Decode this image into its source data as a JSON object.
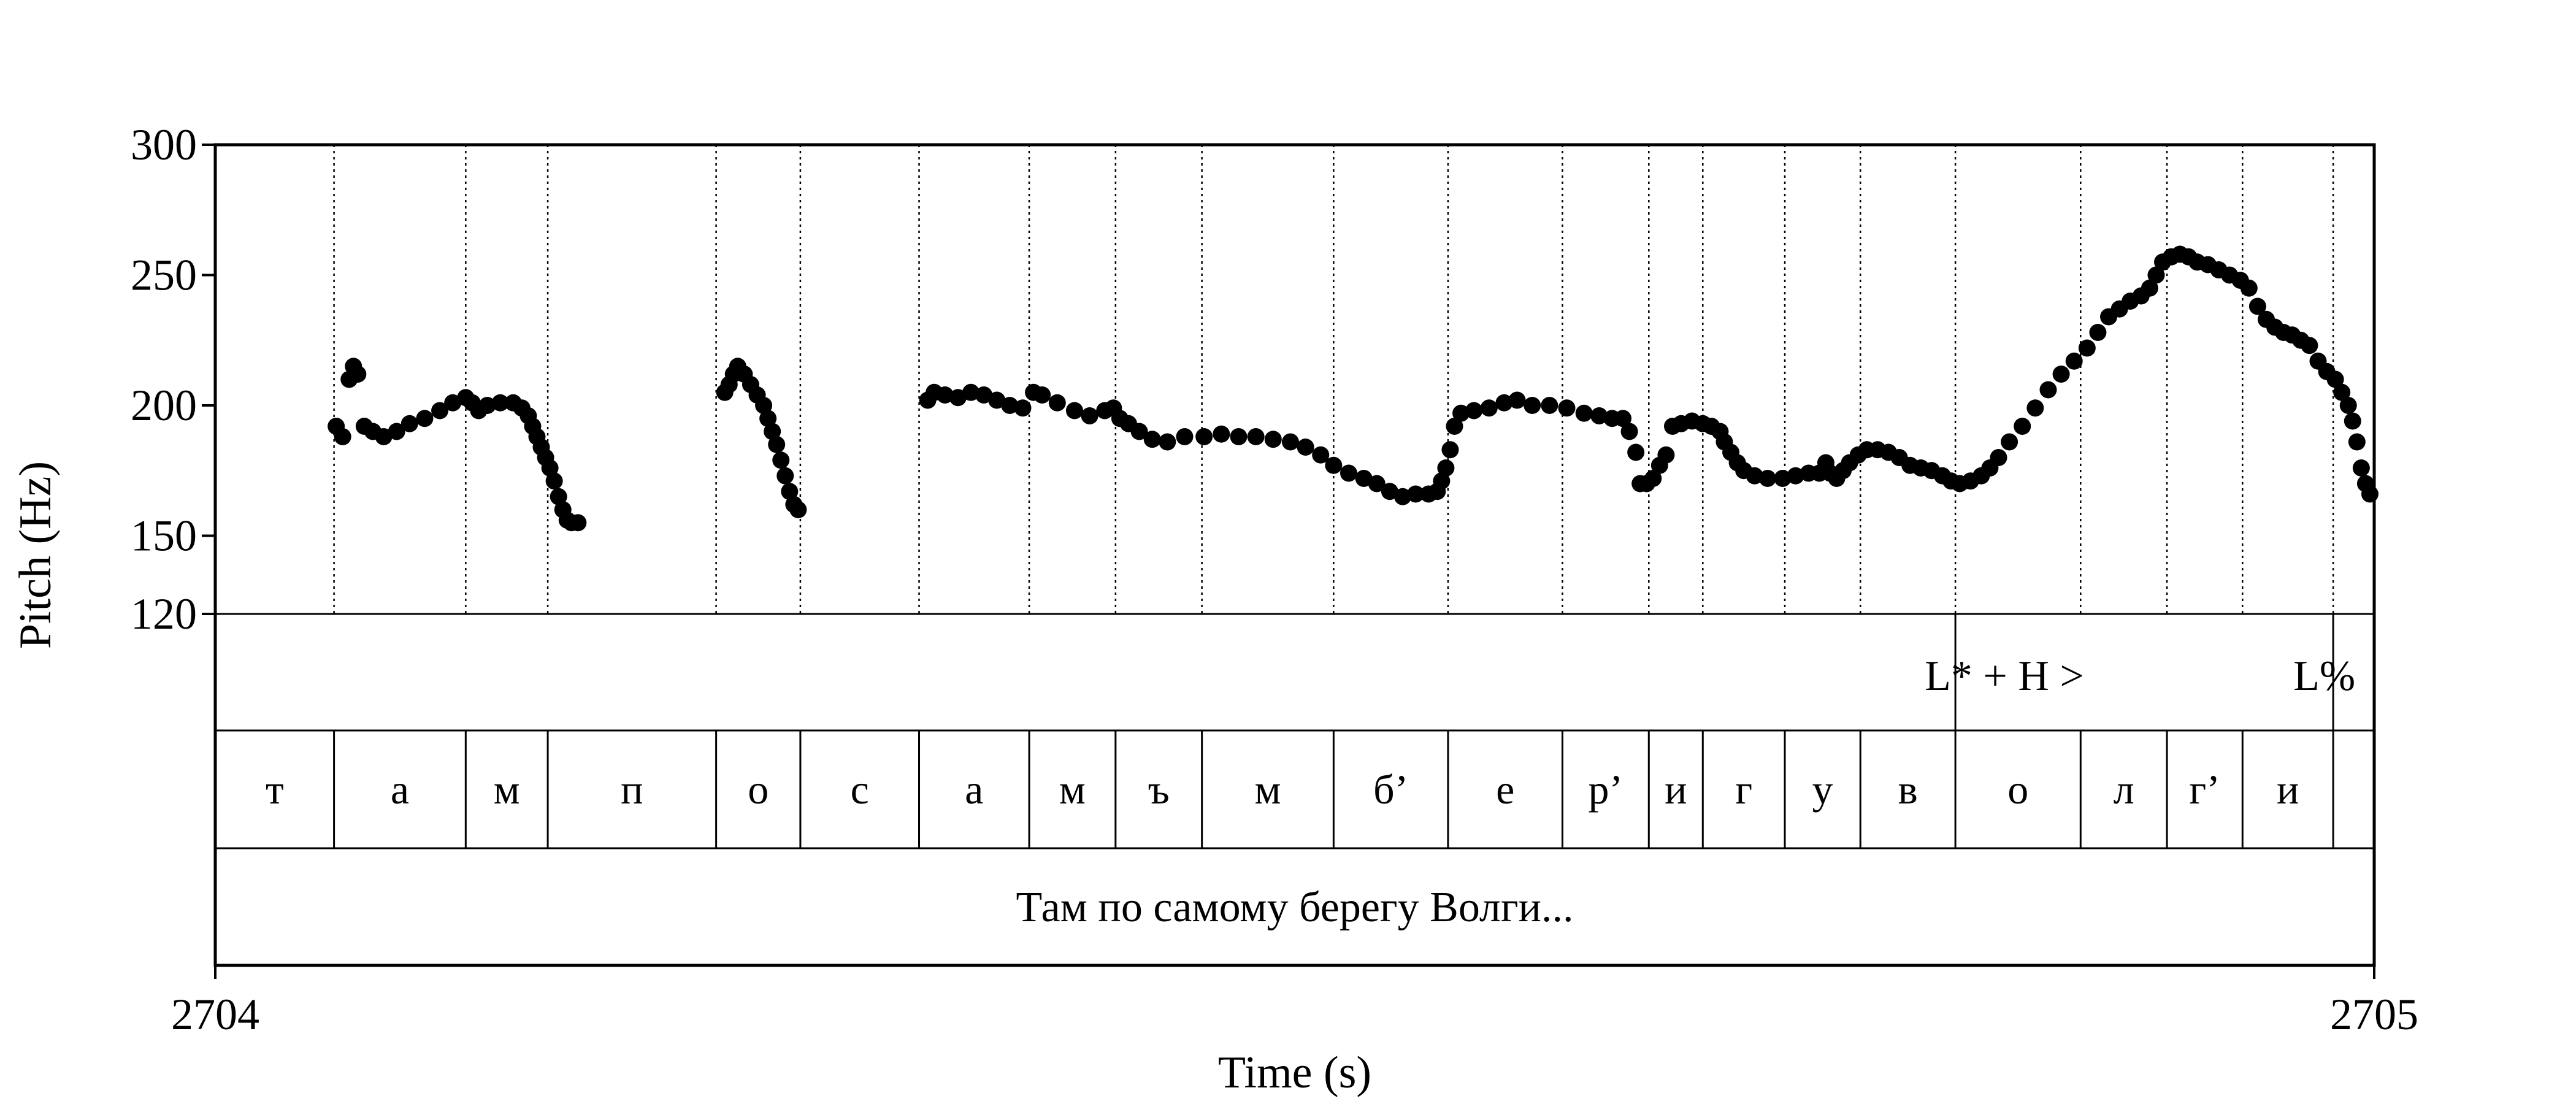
{
  "chart_data": {
    "type": "scatter",
    "ylabel": "Pitch (Hz)",
    "xlabel": "Time (s)",
    "xlim": [
      2704,
      2705
    ],
    "ylim": [
      120,
      300
    ],
    "x_ticks": [
      "2704",
      "2705"
    ],
    "y_ticks": [
      {
        "value": 120,
        "label": "120"
      },
      {
        "value": 150,
        "label": "150"
      },
      {
        "value": 200,
        "label": "200"
      },
      {
        "value": 250,
        "label": "250"
      },
      {
        "value": 300,
        "label": "300"
      }
    ],
    "segment_boundaries": [
      2704.055,
      2704.116,
      2704.154,
      2704.232,
      2704.271,
      2704.326,
      2704.377,
      2704.417,
      2704.457,
      2704.518,
      2704.571,
      2704.624,
      2704.664,
      2704.689,
      2704.727,
      2704.762,
      2704.806,
      2704.864,
      2704.904,
      2704.939,
      2704.981
    ],
    "segment_labels": [
      "т",
      "а",
      "м",
      "п",
      "о",
      "с",
      "а",
      "м",
      "ъ",
      "м",
      "б’",
      "е",
      "р’",
      "и",
      "г",
      "у",
      "в",
      "о",
      "л",
      "г’",
      "и"
    ],
    "tones": [
      {
        "time": 2704.806,
        "label": "L* + H >"
      },
      {
        "time": 2704.981,
        "label": "L%"
      }
    ],
    "sentence": "Там по самому берегу Волги...",
    "pitch_contours": [
      {
        "points": [
          [
            2704.056,
            192
          ],
          [
            2704.059,
            188
          ],
          [
            2704.062,
            210
          ],
          [
            2704.064,
            215
          ],
          [
            2704.066,
            212
          ],
          [
            2704.069,
            192
          ],
          [
            2704.073,
            190
          ],
          [
            2704.078,
            188
          ],
          [
            2704.084,
            190
          ],
          [
            2704.09,
            193
          ],
          [
            2704.097,
            195
          ],
          [
            2704.104,
            198
          ],
          [
            2704.11,
            201
          ],
          [
            2704.116,
            203
          ],
          [
            2704.119,
            201
          ],
          [
            2704.122,
            198
          ],
          [
            2704.126,
            200
          ],
          [
            2704.132,
            201
          ],
          [
            2704.138,
            201
          ],
          [
            2704.142,
            199
          ],
          [
            2704.145,
            196
          ],
          [
            2704.147,
            192
          ],
          [
            2704.149,
            188
          ],
          [
            2704.151,
            184
          ],
          [
            2704.153,
            180
          ],
          [
            2704.155,
            176
          ],
          [
            2704.157,
            171
          ],
          [
            2704.159,
            165
          ],
          [
            2704.161,
            160
          ],
          [
            2704.163,
            156
          ],
          [
            2704.165,
            155
          ],
          [
            2704.168,
            155
          ]
        ]
      },
      {
        "points": [
          [
            2704.236,
            205
          ],
          [
            2704.238,
            208
          ],
          [
            2704.24,
            212
          ],
          [
            2704.242,
            215
          ],
          [
            2704.245,
            212
          ],
          [
            2704.248,
            208
          ],
          [
            2704.251,
            204
          ],
          [
            2704.254,
            200
          ],
          [
            2704.256,
            195
          ],
          [
            2704.258,
            190
          ],
          [
            2704.26,
            185
          ],
          [
            2704.262,
            179
          ],
          [
            2704.264,
            173
          ],
          [
            2704.266,
            167
          ],
          [
            2704.268,
            162
          ],
          [
            2704.27,
            160
          ]
        ]
      },
      {
        "points": [
          [
            2704.33,
            202
          ],
          [
            2704.333,
            205
          ],
          [
            2704.338,
            204
          ],
          [
            2704.344,
            203
          ],
          [
            2704.35,
            205
          ],
          [
            2704.356,
            204
          ],
          [
            2704.362,
            202
          ],
          [
            2704.368,
            200
          ],
          [
            2704.374,
            199
          ],
          [
            2704.379,
            205
          ],
          [
            2704.383,
            204
          ],
          [
            2704.39,
            201
          ],
          [
            2704.398,
            198
          ],
          [
            2704.405,
            196
          ],
          [
            2704.412,
            198
          ],
          [
            2704.416,
            199
          ],
          [
            2704.419,
            195
          ],
          [
            2704.423,
            193
          ],
          [
            2704.428,
            190
          ],
          [
            2704.434,
            187
          ],
          [
            2704.441,
            186
          ],
          [
            2704.449,
            188
          ],
          [
            2704.458,
            188
          ],
          [
            2704.466,
            189
          ],
          [
            2704.474,
            188
          ],
          [
            2704.482,
            188
          ],
          [
            2704.49,
            187
          ],
          [
            2704.498,
            186
          ],
          [
            2704.505,
            184
          ],
          [
            2704.512,
            181
          ],
          [
            2704.518,
            177
          ],
          [
            2704.525,
            174
          ],
          [
            2704.532,
            172
          ],
          [
            2704.538,
            170
          ],
          [
            2704.544,
            167
          ],
          [
            2704.55,
            165
          ],
          [
            2704.556,
            166
          ],
          [
            2704.562,
            166
          ],
          [
            2704.566,
            167
          ],
          [
            2704.568,
            171
          ],
          [
            2704.57,
            176
          ],
          [
            2704.572,
            183
          ],
          [
            2704.574,
            192
          ],
          [
            2704.577,
            197
          ],
          [
            2704.583,
            198
          ],
          [
            2704.59,
            199
          ],
          [
            2704.597,
            201
          ],
          [
            2704.603,
            202
          ],
          [
            2704.61,
            200
          ],
          [
            2704.618,
            200
          ],
          [
            2704.626,
            199
          ],
          [
            2704.634,
            197
          ],
          [
            2704.641,
            196
          ],
          [
            2704.647,
            195
          ],
          [
            2704.652,
            195
          ],
          [
            2704.655,
            190
          ],
          [
            2704.658,
            182
          ],
          [
            2704.66,
            170
          ],
          [
            2704.663,
            170
          ],
          [
            2704.666,
            172
          ],
          [
            2704.669,
            177
          ],
          [
            2704.672,
            181
          ],
          [
            2704.675,
            192
          ],
          [
            2704.679,
            193
          ],
          [
            2704.684,
            194
          ],
          [
            2704.689,
            193
          ],
          [
            2704.693,
            192
          ],
          [
            2704.697,
            190
          ],
          [
            2704.699,
            186
          ],
          [
            2704.702,
            182
          ],
          [
            2704.705,
            178
          ],
          [
            2704.708,
            175
          ],
          [
            2704.713,
            173
          ],
          [
            2704.719,
            172
          ],
          [
            2704.726,
            172
          ],
          [
            2704.732,
            173
          ],
          [
            2704.738,
            174
          ],
          [
            2704.743,
            174
          ],
          [
            2704.746,
            178
          ],
          [
            2704.748,
            174
          ],
          [
            2704.751,
            172
          ],
          [
            2704.754,
            175
          ],
          [
            2704.757,
            178
          ],
          [
            2704.761,
            181
          ],
          [
            2704.765,
            183
          ],
          [
            2704.77,
            183
          ],
          [
            2704.775,
            182
          ],
          [
            2704.78,
            180
          ],
          [
            2704.785,
            177
          ],
          [
            2704.79,
            176
          ],
          [
            2704.795,
            175
          ],
          [
            2704.8,
            173
          ],
          [
            2704.804,
            171
          ],
          [
            2704.808,
            170
          ],
          [
            2704.813,
            171
          ],
          [
            2704.818,
            173
          ],
          [
            2704.822,
            176
          ],
          [
            2704.826,
            180
          ],
          [
            2704.831,
            186
          ],
          [
            2704.837,
            192
          ],
          [
            2704.843,
            199
          ],
          [
            2704.849,
            206
          ],
          [
            2704.855,
            212
          ],
          [
            2704.861,
            217
          ],
          [
            2704.867,
            222
          ],
          [
            2704.872,
            228
          ],
          [
            2704.877,
            234
          ],
          [
            2704.882,
            237
          ],
          [
            2704.887,
            240
          ],
          [
            2704.892,
            242
          ],
          [
            2704.896,
            245
          ],
          [
            2704.899,
            250
          ],
          [
            2704.902,
            255
          ],
          [
            2704.906,
            257
          ],
          [
            2704.91,
            258
          ],
          [
            2704.914,
            257
          ],
          [
            2704.918,
            255
          ],
          [
            2704.923,
            254
          ],
          [
            2704.928,
            252
          ],
          [
            2704.933,
            250
          ],
          [
            2704.938,
            248
          ],
          [
            2704.942,
            245
          ],
          [
            2704.946,
            238
          ],
          [
            2704.95,
            233
          ],
          [
            2704.954,
            230
          ],
          [
            2704.958,
            228
          ],
          [
            2704.962,
            227
          ],
          [
            2704.966,
            225
          ],
          [
            2704.97,
            223
          ],
          [
            2704.974,
            217
          ],
          [
            2704.978,
            213
          ],
          [
            2704.982,
            210
          ],
          [
            2704.985,
            205
          ],
          [
            2704.988,
            200
          ],
          [
            2704.99,
            194
          ],
          [
            2704.992,
            186
          ],
          [
            2704.994,
            176
          ],
          [
            2704.996,
            170
          ],
          [
            2704.998,
            166
          ]
        ]
      }
    ]
  }
}
